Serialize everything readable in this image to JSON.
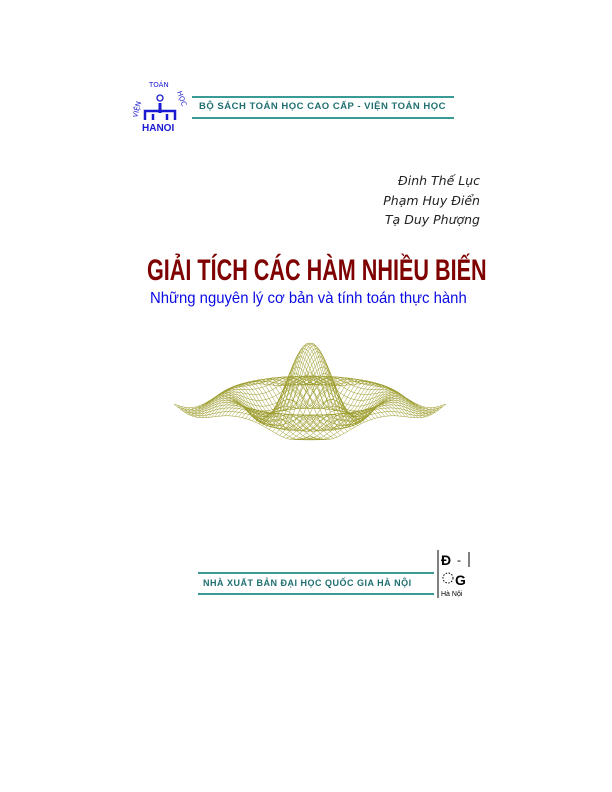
{
  "header": {
    "series": "BỘ SÁCH TOÁN HỌC CAO CẤP - VIỆN TOÁN HỌC",
    "logo_text": "VIỆN TOÁN HỌC HANOI"
  },
  "authors": [
    "Đinh Thế Lục",
    "Phạm Huy Điển",
    "Tạ Duy Phượng"
  ],
  "title": "GIẢI TÍCH CÁC HÀM NHIỀU BIẾN",
  "subtitle": "Những nguyên lý cơ bản và tính toán thực hành",
  "footer": {
    "publisher": "NHÀ XUẤT BẢN ĐẠI HỌC QUỐC GIA HÀ NỘI",
    "logo_text": "ĐHQG Hà Nội",
    "logo_city": "Hà Nội"
  },
  "colors": {
    "title": "#7e0000",
    "subtitle": "#0a0ae6",
    "accent": "#3a9a96",
    "surface": "#9c9c2c"
  }
}
